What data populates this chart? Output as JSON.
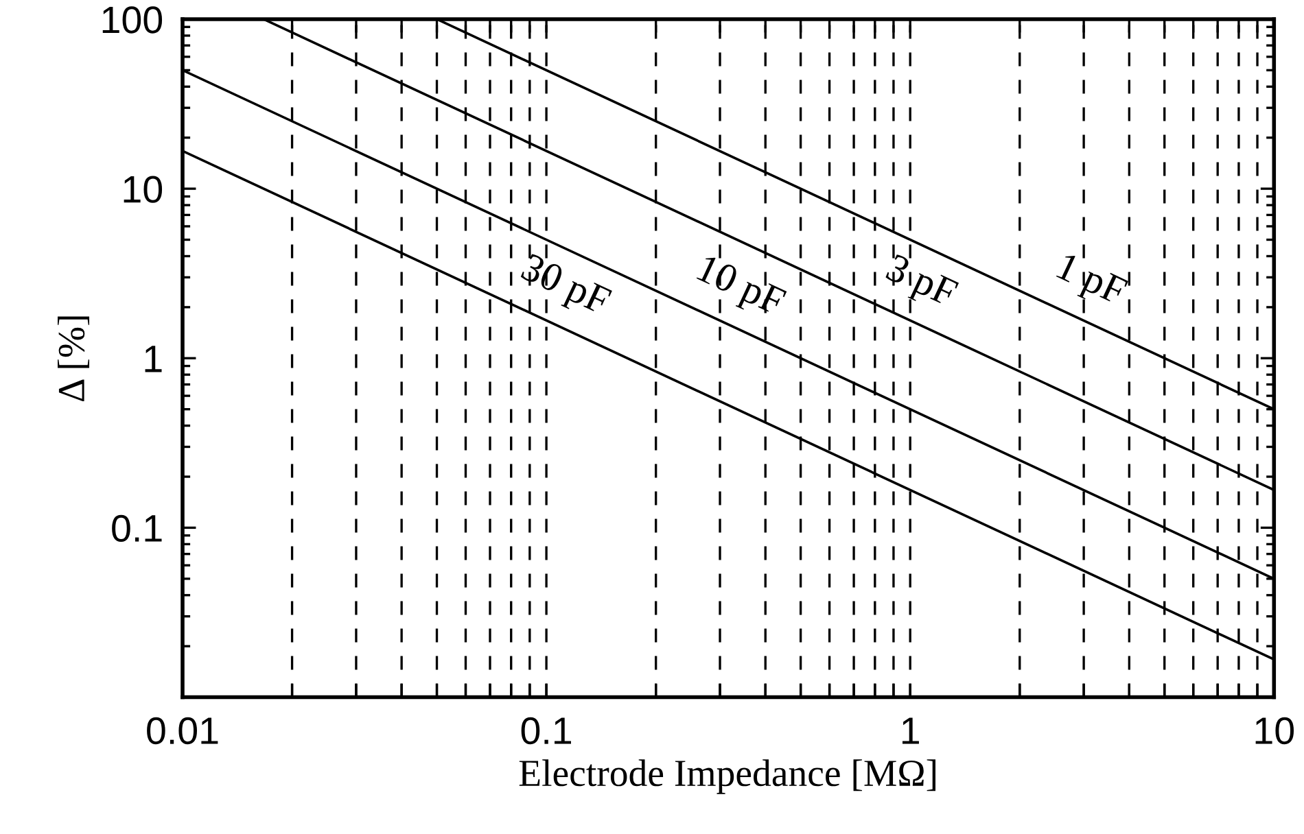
{
  "chart_data": {
    "type": "line",
    "xlabel": "Electrode Impedance [MΩ]",
    "ylabel": "Δ [%]",
    "log": "xy",
    "grid": "x",
    "line_style": "solid",
    "marker": "none",
    "series": [
      {
        "name": "1 pF",
        "x": [
          0.05,
          10
        ],
        "values": [
          100,
          0.5
        ],
        "color": "#000000"
      },
      {
        "name": "3 pF",
        "x": [
          0.0167,
          10
        ],
        "values": [
          100,
          0.167
        ],
        "color": "#000000"
      },
      {
        "name": "10 pF",
        "x": [
          0.01,
          10
        ],
        "values": [
          50,
          0.05
        ],
        "color": "#000000"
      },
      {
        "name": "30 pF",
        "x": [
          0.01,
          10
        ],
        "values": [
          16.7,
          0.0167
        ],
        "color": "#000000"
      }
    ],
    "xlim": [
      0.01,
      10
    ],
    "xticks": [
      0.01,
      {
        "value": 0.02,
        "label": null
      },
      {
        "value": 0.03,
        "label": null
      },
      {
        "value": 0.04,
        "label": null
      },
      {
        "value": 0.05,
        "label": null
      },
      {
        "value": 0.06,
        "label": null
      },
      {
        "value": 0.07,
        "label": null
      },
      {
        "value": 0.08,
        "label": null
      },
      {
        "value": 0.09,
        "label": null
      },
      0.1,
      {
        "value": 0.2,
        "label": null
      },
      {
        "value": 0.3,
        "label": null
      },
      {
        "value": 0.4,
        "label": null
      },
      {
        "value": 0.5,
        "label": null
      },
      {
        "value": 0.6,
        "label": null
      },
      {
        "value": 0.7,
        "label": null
      },
      {
        "value": 0.8,
        "label": null
      },
      {
        "value": 0.9,
        "label": null
      },
      1,
      {
        "value": 2,
        "label": null
      },
      {
        "value": 3,
        "label": null
      },
      {
        "value": 4,
        "label": null
      },
      {
        "value": 5,
        "label": null
      },
      {
        "value": 6,
        "label": null
      },
      {
        "value": 7,
        "label": null
      },
      {
        "value": 8,
        "label": null
      },
      {
        "value": 9,
        "label": null
      },
      10
    ],
    "ylim": [
      0.01,
      100
    ],
    "yticks": [
      {
        "value": 0.01,
        "label": null
      },
      0.1,
      1,
      10,
      100
    ]
  }
}
